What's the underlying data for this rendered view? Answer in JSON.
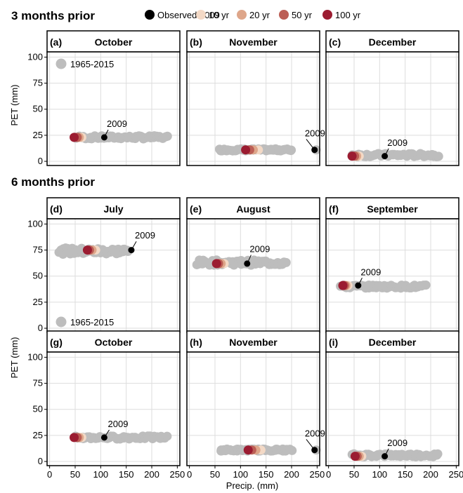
{
  "section_titles": [
    "3 months prior",
    "6 months prior"
  ],
  "legend": {
    "entries": [
      {
        "label": "Observed 2009",
        "color": "#000000"
      },
      {
        "label": "10 yr",
        "color": "#f3d9c6"
      },
      {
        "label": "20 yr",
        "color": "#dea68a"
      },
      {
        "label": "50 yr",
        "color": "#bc5e55"
      },
      {
        "label": "100 yr",
        "color": "#9b1c31"
      }
    ],
    "history_label": "1965-2015",
    "history_color": "#bdbdbd"
  },
  "chart_data": {
    "type": "scatter",
    "xlabel": "Precip. (mm)",
    "ylabel": "PET (mm)",
    "xlim": [
      -5,
      255
    ],
    "ylim": [
      -4,
      105
    ],
    "xticks": [
      0,
      50,
      100,
      150,
      200,
      250
    ],
    "yticks": [
      0,
      25,
      50,
      75,
      100
    ],
    "annotation_label": "2009",
    "panels": [
      {
        "id": "(a)",
        "title": "October",
        "row": 0,
        "col": 0,
        "history_x": [
          50,
          230
        ],
        "history_y": 23,
        "history_spread": 1.5,
        "observed": [
          107,
          23
        ],
        "label_pos": [
          112,
          33
        ],
        "return_periods": [
          [
            63,
            23
          ],
          [
            58,
            23
          ],
          [
            54,
            23
          ],
          [
            48,
            23
          ]
        ],
        "show_legend": true
      },
      {
        "id": "(b)",
        "title": "November",
        "row": 0,
        "col": 1,
        "history_x": [
          60,
          200
        ],
        "history_y": 11,
        "history_spread": 1.0,
        "outlier": [
          248,
          11
        ],
        "observed": [
          245,
          11
        ],
        "label_pos": [
          226,
          24
        ],
        "return_periods": [
          [
            135,
            11
          ],
          [
            125,
            11
          ],
          [
            118,
            11
          ],
          [
            110,
            11
          ]
        ],
        "show_legend": false
      },
      {
        "id": "(c)",
        "title": "December",
        "row": 0,
        "col": 2,
        "history_x": [
          45,
          215
        ],
        "history_y": 6,
        "history_spread": 1.5,
        "observed": [
          110,
          5
        ],
        "label_pos": [
          115,
          15
        ],
        "return_periods": [
          [
            60,
            5
          ],
          [
            55,
            5
          ],
          [
            51,
            5
          ],
          [
            46,
            5
          ]
        ],
        "show_legend": false
      },
      {
        "id": "(d)",
        "title": "July",
        "row": 1,
        "col": 0,
        "history_x": [
          20,
          155
        ],
        "history_y": 74,
        "history_spread": 3.0,
        "observed": [
          160,
          75
        ],
        "label_pos": [
          167,
          86
        ],
        "return_periods": [
          [
            90,
            75
          ],
          [
            83,
            75
          ],
          [
            78,
            75
          ],
          [
            74,
            75
          ]
        ],
        "show_legend": true
      },
      {
        "id": "(e)",
        "title": "August",
        "row": 1,
        "col": 1,
        "history_x": [
          15,
          190
        ],
        "history_y": 63,
        "history_spread": 2.5,
        "observed": [
          113,
          62
        ],
        "label_pos": [
          118,
          73
        ],
        "return_periods": [
          [
            68,
            62
          ],
          [
            62,
            62
          ],
          [
            57,
            62
          ],
          [
            53,
            62
          ]
        ],
        "show_legend": false
      },
      {
        "id": "(f)",
        "title": "September",
        "row": 1,
        "col": 2,
        "history_x": [
          25,
          190
        ],
        "history_y": 40,
        "history_spread": 1.5,
        "observed": [
          58,
          41
        ],
        "label_pos": [
          63,
          51
        ],
        "return_periods": [
          [
            38,
            41
          ],
          [
            34,
            41
          ],
          [
            31,
            41
          ],
          [
            28,
            41
          ]
        ],
        "show_legend": false
      },
      {
        "id": "(g)",
        "title": "October",
        "row": 2,
        "col": 0,
        "history_x": [
          50,
          230
        ],
        "history_y": 23,
        "history_spread": 1.5,
        "observed": [
          107,
          23
        ],
        "label_pos": [
          114,
          33
        ],
        "return_periods": [
          [
            63,
            23
          ],
          [
            58,
            23
          ],
          [
            54,
            23
          ],
          [
            48,
            23
          ]
        ],
        "show_legend": false
      },
      {
        "id": "(h)",
        "title": "November",
        "row": 2,
        "col": 1,
        "history_x": [
          60,
          200
        ],
        "history_y": 11,
        "history_spread": 1.0,
        "outlier": [
          248,
          11
        ],
        "observed": [
          245,
          11
        ],
        "label_pos": [
          226,
          24
        ],
        "return_periods": [
          [
            140,
            11
          ],
          [
            130,
            11
          ],
          [
            122,
            11
          ],
          [
            115,
            11
          ]
        ],
        "show_legend": false
      },
      {
        "id": "(i)",
        "title": "December",
        "row": 2,
        "col": 2,
        "history_x": [
          45,
          215
        ],
        "history_y": 6,
        "history_spread": 1.5,
        "observed": [
          110,
          5
        ],
        "label_pos": [
          115,
          15
        ],
        "return_periods": [
          [
            65,
            5
          ],
          [
            60,
            5
          ],
          [
            56,
            5
          ],
          [
            52,
            5
          ]
        ],
        "show_legend": false
      }
    ]
  }
}
